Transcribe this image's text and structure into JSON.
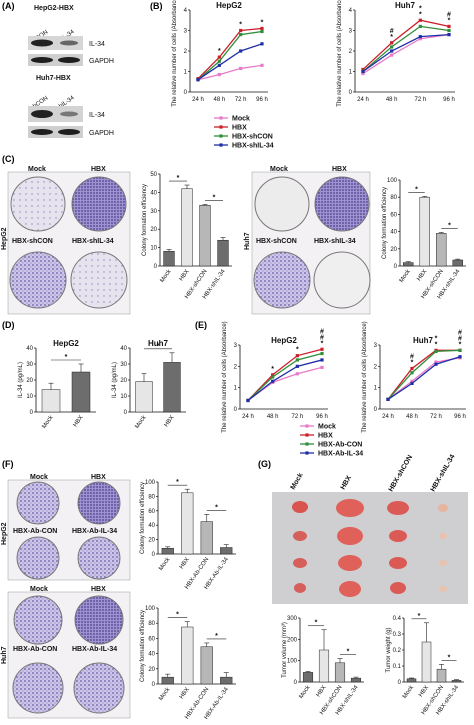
{
  "panels": {
    "A": {
      "label": "(A)",
      "blot1": {
        "title": "HepG2-HBX",
        "lanes": [
          "shCON",
          "shIL-34"
        ],
        "bands": [
          "IL-34",
          "GAPDH"
        ]
      },
      "blot2": {
        "title": "Huh7-HBX",
        "lanes": [
          "shCON",
          "shIL-34"
        ],
        "bands": [
          "IL-34",
          "GAPDH"
        ]
      }
    },
    "B": {
      "label": "(B)"
    },
    "C": {
      "label": "(C)",
      "hepg2_wells": [
        "Mock",
        "HBX",
        "HBX-shCON",
        "HBX-shIL-34"
      ],
      "huh7_wells": [
        "Mock",
        "HBX",
        "HBX-shCON",
        "HBX-shIL-34"
      ],
      "side_hepg2": "HepG2",
      "side_huh7": "Huh7"
    },
    "D": {
      "label": "(D)"
    },
    "E": {
      "label": "(E)"
    },
    "F": {
      "label": "(F)",
      "hepg2_wells": [
        "Mock",
        "HBX",
        "HBX-Ab-CON",
        "HBX-Ab-IL-34"
      ],
      "huh7_wells": [
        "Mock",
        "HBX",
        "HBX-Ab-CON",
        "HBX-Ab-IL-34"
      ],
      "side_hepg2": "HepG2",
      "side_huh7": "Huh7"
    },
    "G": {
      "label": "(G)",
      "groups": [
        "Mock",
        "HBX",
        "HBX-shCON",
        "HBX-shIL-34"
      ]
    }
  },
  "colors": {
    "mock": "#e87ac8",
    "hbx": "#cc1f2a",
    "ctl": "#2f8f3a",
    "kd": "#1f2fa8"
  },
  "chart_data": [
    {
      "id": "B-HepG2",
      "type": "line",
      "title": "HepG2",
      "ylabel": "The relative number of cells (Absorbance)",
      "categories": [
        "24 h",
        "48 h",
        "72 h",
        "96 h"
      ],
      "ylim": [
        0,
        4
      ],
      "yticks": [
        0,
        1,
        2,
        3,
        4
      ],
      "series": [
        {
          "name": "Mock",
          "color": "mock",
          "values": [
            0.6,
            0.85,
            1.15,
            1.3
          ]
        },
        {
          "name": "HBX",
          "color": "hbx",
          "values": [
            0.65,
            1.7,
            3.0,
            3.1
          ]
        },
        {
          "name": "HBX-shCON",
          "color": "ctl",
          "values": [
            0.6,
            1.5,
            2.8,
            2.95
          ]
        },
        {
          "name": "HBX-shIL-34",
          "color": "kd",
          "values": [
            0.6,
            1.3,
            2.0,
            2.35
          ]
        }
      ],
      "annotations": [
        "*",
        "*",
        "*"
      ]
    },
    {
      "id": "B-Huh7",
      "type": "line",
      "title": "Huh7",
      "ylabel": "The relative number of cells (Absorbance)",
      "categories": [
        "24 h",
        "48 h",
        "72 h",
        "96 h"
      ],
      "ylim": [
        0,
        4
      ],
      "yticks": [
        0,
        1,
        2,
        3,
        4
      ],
      "series": [
        {
          "name": "Mock",
          "color": "mock",
          "values": [
            0.9,
            1.8,
            2.6,
            2.8
          ]
        },
        {
          "name": "HBX",
          "color": "hbx",
          "values": [
            1.1,
            2.4,
            3.5,
            3.2
          ]
        },
        {
          "name": "HBX-shCON",
          "color": "ctl",
          "values": [
            1.0,
            2.2,
            3.2,
            3.0
          ]
        },
        {
          "name": "HBX-shIL-34",
          "color": "kd",
          "values": [
            1.0,
            2.0,
            2.7,
            2.8
          ]
        }
      ],
      "annotations": [
        "*",
        "*",
        "*",
        "#",
        "*",
        "#"
      ]
    },
    {
      "id": "C-HepG2",
      "type": "bar",
      "ylabel": "Colony formation efficiency",
      "categories": [
        "Mock",
        "HBX",
        "HBX-shCON",
        "HBX-shIL-34"
      ],
      "values": [
        8,
        42,
        33,
        14
      ],
      "errors": [
        1,
        2,
        0.5,
        1.5
      ],
      "ylim": [
        0,
        50
      ],
      "yticks": [
        0,
        10,
        20,
        30,
        40,
        50
      ],
      "annotations": [
        "*",
        "*"
      ]
    },
    {
      "id": "C-Huh7",
      "type": "bar",
      "ylabel": "Colony formation efficiency",
      "categories": [
        "Mock",
        "HBX",
        "HBX-shCON",
        "HBX-shIL-34"
      ],
      "values": [
        4,
        80,
        38,
        7
      ],
      "errors": [
        1,
        1,
        1,
        1
      ],
      "ylim": [
        0,
        100
      ],
      "yticks": [
        0,
        20,
        40,
        60,
        80,
        100
      ],
      "annotations": [
        "*",
        "*"
      ]
    },
    {
      "id": "D-HepG2",
      "type": "bar",
      "title": "HepG2",
      "ylabel": "IL-34 (pg/mL)",
      "categories": [
        "Mock",
        "HBX"
      ],
      "values": [
        14,
        25
      ],
      "errors": [
        4,
        5
      ],
      "ylim": [
        0,
        40
      ],
      "yticks": [
        0,
        10,
        20,
        30,
        40
      ],
      "annotations": [
        "*"
      ]
    },
    {
      "id": "D-Huh7",
      "type": "bar",
      "title": "Huh7",
      "ylabel": "IL-34 (pg/mL)",
      "categories": [
        "Mock",
        "HBX"
      ],
      "values": [
        19,
        31
      ],
      "errors": [
        5,
        6
      ],
      "ylim": [
        0,
        40
      ],
      "yticks": [
        0,
        10,
        20,
        30,
        40
      ],
      "annotations": [
        "*"
      ]
    },
    {
      "id": "E-HepG2",
      "type": "line",
      "title": "HepG2",
      "ylabel": "The relative number of cells (Absorbance)",
      "categories": [
        "24 h",
        "48 h",
        "72 h",
        "96 h"
      ],
      "ylim": [
        0,
        3
      ],
      "yticks": [
        0,
        1,
        2,
        3
      ],
      "series": [
        {
          "name": "Mock",
          "color": "mock",
          "values": [
            0.4,
            1.25,
            1.65,
            1.95
          ]
        },
        {
          "name": "HBX",
          "color": "hbx",
          "values": [
            0.4,
            1.6,
            2.5,
            2.8
          ]
        },
        {
          "name": "HBX-Ab-CON",
          "color": "ctl",
          "values": [
            0.4,
            1.5,
            2.3,
            2.6
          ]
        },
        {
          "name": "HBX-Ab-IL-34",
          "color": "kd",
          "values": [
            0.4,
            1.3,
            2.0,
            2.3
          ]
        }
      ],
      "annotations": [
        "*",
        "*",
        "*",
        "#",
        "#"
      ]
    },
    {
      "id": "E-Huh7",
      "type": "line",
      "title": "Huh7",
      "ylabel": "The relative number of cells (Absorbance)",
      "categories": [
        "24 h",
        "48 h",
        "72 h",
        "96 h"
      ],
      "ylim": [
        0,
        3
      ],
      "yticks": [
        0,
        1,
        2,
        3
      ],
      "series": [
        {
          "name": "Mock",
          "color": "mock",
          "values": [
            0.45,
            1.3,
            2.2,
            2.4
          ]
        },
        {
          "name": "HBX",
          "color": "hbx",
          "values": [
            0.45,
            1.9,
            2.75,
            2.75
          ]
        },
        {
          "name": "HBX-Ab-CON",
          "color": "ctl",
          "values": [
            0.45,
            1.7,
            2.7,
            2.75
          ]
        },
        {
          "name": "HBX-Ab-IL-34",
          "color": "kd",
          "values": [
            0.45,
            1.2,
            2.1,
            2.45
          ]
        }
      ],
      "annotations": [
        "*",
        "#",
        "*",
        "*",
        "*",
        "#",
        "#"
      ]
    },
    {
      "id": "F-HepG2",
      "type": "bar",
      "ylabel": "Colony formation efficiency",
      "categories": [
        "Mock",
        "HBX",
        "HBX-Ab-CON",
        "HBX-Ab-IL-34"
      ],
      "values": [
        8,
        85,
        45,
        9
      ],
      "errors": [
        2,
        5,
        10,
        4
      ],
      "ylim": [
        0,
        100
      ],
      "yticks": [
        0,
        20,
        40,
        60,
        80,
        100
      ],
      "annotations": [
        "*",
        "*"
      ]
    },
    {
      "id": "F-Huh7",
      "type": "bar",
      "ylabel": "Colony formation efficiency",
      "categories": [
        "Mock",
        "HBX",
        "HBX-Ab-CON",
        "HBX-Ab-IL-34"
      ],
      "values": [
        9,
        75,
        49,
        9
      ],
      "errors": [
        4,
        7,
        5,
        6
      ],
      "ylim": [
        0,
        100
      ],
      "yticks": [
        0,
        20,
        40,
        60,
        80,
        100
      ],
      "annotations": [
        "*",
        "*"
      ]
    },
    {
      "id": "G-volume",
      "type": "bar",
      "ylabel": "Tumor volume (mm³)",
      "categories": [
        "Mock",
        "HBX",
        "HBX-shCON",
        "HBX-shIL-34"
      ],
      "values": [
        45,
        150,
        90,
        18
      ],
      "errors": [
        5,
        95,
        20,
        5
      ],
      "ylim": [
        0,
        300
      ],
      "yticks": [
        0,
        100,
        200,
        300
      ],
      "annotations": [
        "*",
        "*"
      ]
    },
    {
      "id": "G-weight",
      "type": "bar",
      "ylabel": "Tumor weight (g)",
      "categories": [
        "Mock",
        "HBX",
        "HBX-shCON",
        "HBX-shIL-34"
      ],
      "values": [
        0.02,
        0.25,
        0.08,
        0.01
      ],
      "errors": [
        0.005,
        0.12,
        0.03,
        0.005
      ],
      "ylim": [
        0,
        0.4
      ],
      "yticks": [
        0.0,
        0.1,
        0.2,
        0.3,
        0.4
      ],
      "annotations": [
        "*",
        "*"
      ]
    }
  ]
}
